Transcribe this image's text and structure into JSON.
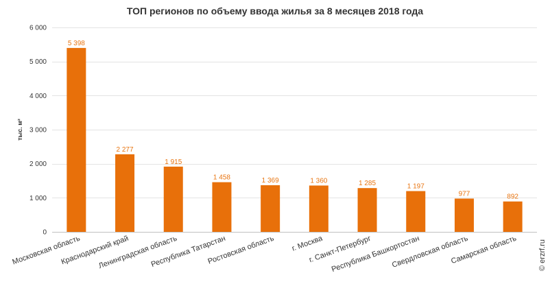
{
  "chart_data": {
    "type": "bar",
    "title": "ТОП регионов по объему ввода жилья за 8 месяцев 2018 года",
    "ylabel": "тыс. м²",
    "xlabel": "",
    "ylim": [
      0,
      6000
    ],
    "yticks": [
      0,
      1000,
      2000,
      3000,
      4000,
      5000,
      6000
    ],
    "ytick_labels": [
      "0",
      "1 000",
      "2 000",
      "3 000",
      "4 000",
      "5 000",
      "6 000"
    ],
    "grid": true,
    "bar_color": "#e8700a",
    "label_color": "#e87511",
    "categories": [
      "Московская область",
      "Краснодарский край",
      "Ленинградская область",
      "Республика Татарстан",
      "Ростовская область",
      "г. Москва",
      "г. Санкт-Петербург",
      "Республика Башкортостан",
      "Свердловская область",
      "Самарская область"
    ],
    "values": [
      5398,
      2277,
      1915,
      1458,
      1369,
      1360,
      1285,
      1197,
      977,
      892
    ],
    "value_labels": [
      "5 398",
      "2 277",
      "1 915",
      "1 458",
      "1 369",
      "1 360",
      "1 285",
      "1 197",
      "977",
      "892"
    ]
  },
  "watermark": "© erzrf.ru"
}
